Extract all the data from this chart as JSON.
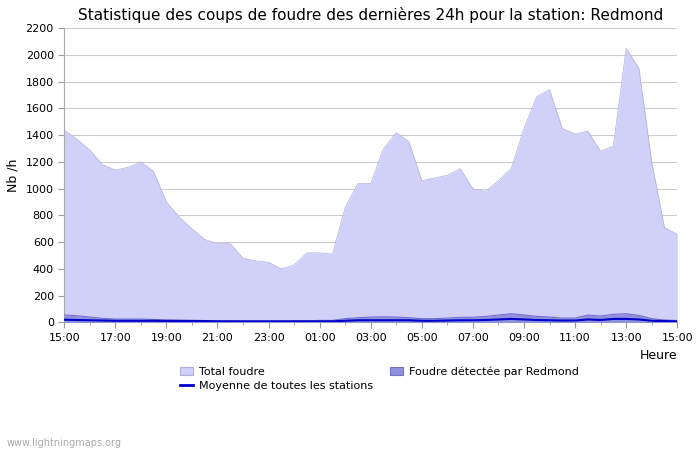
{
  "title": "Statistique des coups de foudre des dernières 24h pour la station: Redmond",
  "ylabel": "Nb /h",
  "xlabel": "Heure",
  "watermark": "www.lightningmaps.org",
  "xlim": [
    0,
    48
  ],
  "ylim": [
    0,
    2200
  ],
  "yticks": [
    0,
    200,
    400,
    600,
    800,
    1000,
    1200,
    1400,
    1600,
    1800,
    2000,
    2200
  ],
  "xtick_labels": [
    "15:00",
    "17:00",
    "19:00",
    "21:00",
    "23:00",
    "01:00",
    "03:00",
    "05:00",
    "07:00",
    "09:00",
    "11:00",
    "13:00",
    "15:00"
  ],
  "xtick_positions": [
    0,
    4,
    8,
    12,
    16,
    20,
    24,
    28,
    32,
    36,
    40,
    44,
    48
  ],
  "total_foudre_color": "#d0d0f8",
  "total_foudre_line": "#b0b0e0",
  "redmond_color": "#9090dd",
  "redmond_line": "#7070cc",
  "moyenne_color": "#0000cc",
  "background_color": "#ffffff",
  "grid_color": "#cccccc",
  "title_fontsize": 11,
  "axis_fontsize": 9,
  "tick_fontsize": 8,
  "legend_fontsize": 8,
  "total_foudre": [
    1440,
    1370,
    1290,
    1180,
    1140,
    1160,
    1200,
    1130,
    900,
    790,
    700,
    620,
    590,
    590,
    480,
    460,
    450,
    400,
    430,
    520,
    520,
    510,
    860,
    1040,
    1040,
    1300,
    1420,
    1350,
    1060,
    1080,
    1100,
    1150,
    1000,
    980,
    1060,
    1150,
    1450,
    1690,
    1740,
    1450,
    1410,
    1430,
    1280,
    1320,
    2050,
    1900,
    1200,
    710,
    660
  ],
  "redmond_foudre": [
    55,
    50,
    40,
    30,
    25,
    25,
    25,
    22,
    20,
    18,
    16,
    14,
    12,
    12,
    10,
    10,
    10,
    10,
    12,
    12,
    15,
    15,
    28,
    35,
    40,
    42,
    40,
    35,
    28,
    28,
    32,
    38,
    38,
    45,
    55,
    65,
    55,
    45,
    40,
    32,
    32,
    55,
    48,
    60,
    65,
    52,
    28,
    18,
    14
  ],
  "moyenne_foudre": [
    20,
    18,
    16,
    14,
    12,
    12,
    12,
    12,
    10,
    10,
    10,
    10,
    8,
    8,
    8,
    8,
    8,
    8,
    8,
    8,
    8,
    8,
    12,
    16,
    16,
    16,
    16,
    16,
    12,
    12,
    14,
    16,
    16,
    18,
    22,
    26,
    22,
    18,
    16,
    14,
    14,
    22,
    18,
    26,
    26,
    22,
    12,
    10,
    8
  ]
}
